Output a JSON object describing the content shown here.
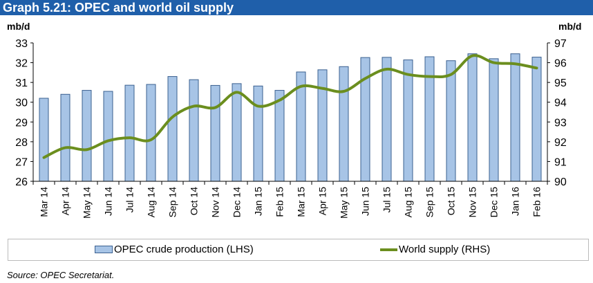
{
  "title": "Graph 5.21: OPEC and world oil supply",
  "source": "Source: OPEC Secretariat.",
  "chart_data": {
    "type": "bar+line",
    "title": "Graph 5.21: OPEC and world oil supply",
    "ylabel_left": "mb/d",
    "ylabel_right": "mb/d",
    "ylim_left": [
      26,
      33
    ],
    "ylim_right": [
      90,
      97
    ],
    "yticks_left": [
      26,
      27,
      28,
      29,
      30,
      31,
      32,
      33
    ],
    "yticks_right": [
      90,
      91,
      92,
      93,
      94,
      95,
      96,
      97
    ],
    "categories": [
      "Mar 14",
      "Apr 14",
      "May 14",
      "Jun 14",
      "Jul 14",
      "Aug 14",
      "Sep 14",
      "Oct 14",
      "Nov 14",
      "Dec 14",
      "Jan 15",
      "Feb 15",
      "Mar 15",
      "Apr 15",
      "May 15",
      "Jun 15",
      "Jul 15",
      "Aug 15",
      "Sep 15",
      "Oct 15",
      "Nov 15",
      "Dec 15",
      "Jan 16",
      "Feb 16"
    ],
    "series": [
      {
        "name": "OPEC crude production (LHS)",
        "type": "bar",
        "axis": "left",
        "color": "#A7C4E6",
        "values": [
          30.2,
          30.4,
          30.6,
          30.55,
          30.86,
          30.9,
          31.3,
          31.14,
          30.85,
          30.94,
          30.82,
          30.6,
          31.53,
          31.64,
          31.8,
          32.26,
          32.27,
          32.14,
          32.3,
          32.1,
          32.45,
          32.2,
          32.45,
          32.28
        ]
      },
      {
        "name": "World supply (RHS)",
        "type": "line",
        "axis": "right",
        "color": "#6B8E1E",
        "values": [
          91.2,
          91.7,
          91.6,
          92.05,
          92.2,
          92.1,
          93.25,
          93.8,
          93.73,
          94.5,
          93.8,
          94.1,
          94.8,
          94.7,
          94.55,
          95.2,
          95.67,
          95.4,
          95.3,
          95.4,
          96.35,
          96.0,
          95.94,
          95.73
        ]
      }
    ],
    "legend_position": "bottom",
    "grid": false
  }
}
